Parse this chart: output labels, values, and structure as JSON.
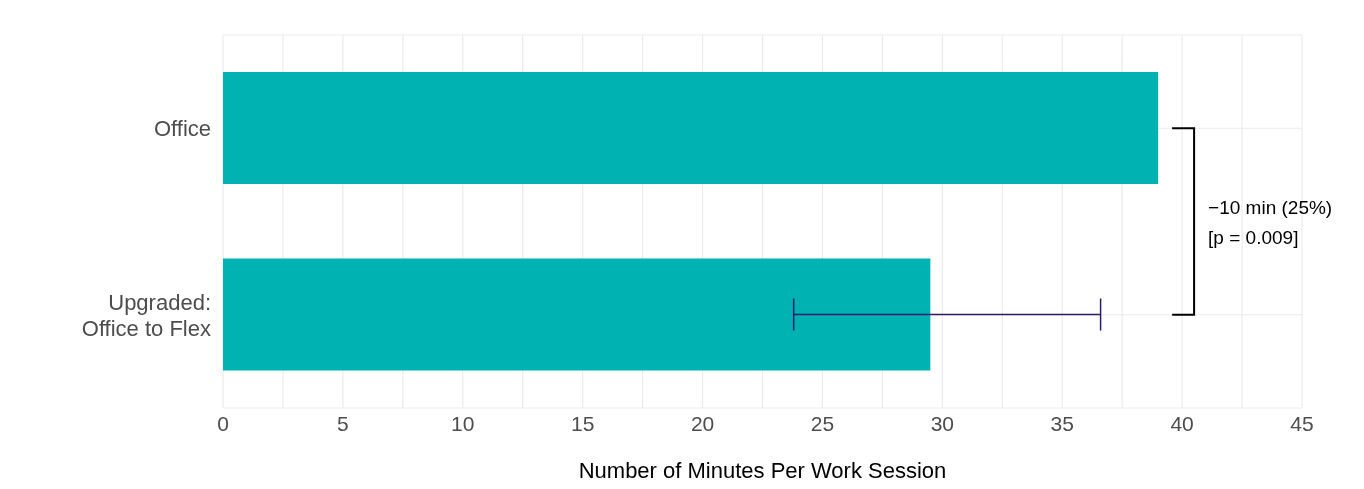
{
  "chart_data": {
    "type": "bar",
    "orientation": "horizontal",
    "categories": [
      "Office",
      "Upgraded:\nOffice to Flex"
    ],
    "values": [
      39,
      29.5
    ],
    "errors": [
      null,
      [
        23.8,
        36.6
      ]
    ],
    "color": "#00b2b2",
    "xlabel": "Number of Minutes Per Work Session",
    "xlim": [
      0,
      45
    ],
    "xticks": [
      0,
      {
        "value": 2.5,
        "label": null
      },
      5,
      {
        "value": 7.5,
        "label": null
      },
      10,
      {
        "value": 12.5,
        "label": null
      },
      15,
      {
        "value": 17.5,
        "label": null
      },
      20,
      {
        "value": 22.5,
        "label": null
      },
      25,
      {
        "value": 27.5,
        "label": null
      },
      30,
      {
        "value": 32.5,
        "label": null
      },
      35,
      {
        "value": 37.5,
        "label": null
      },
      40,
      {
        "value": 42.5,
        "label": null
      },
      45
    ],
    "grid": true,
    "annotations": [
      "−10 min (25%)\n[p = 0.009]"
    ]
  }
}
